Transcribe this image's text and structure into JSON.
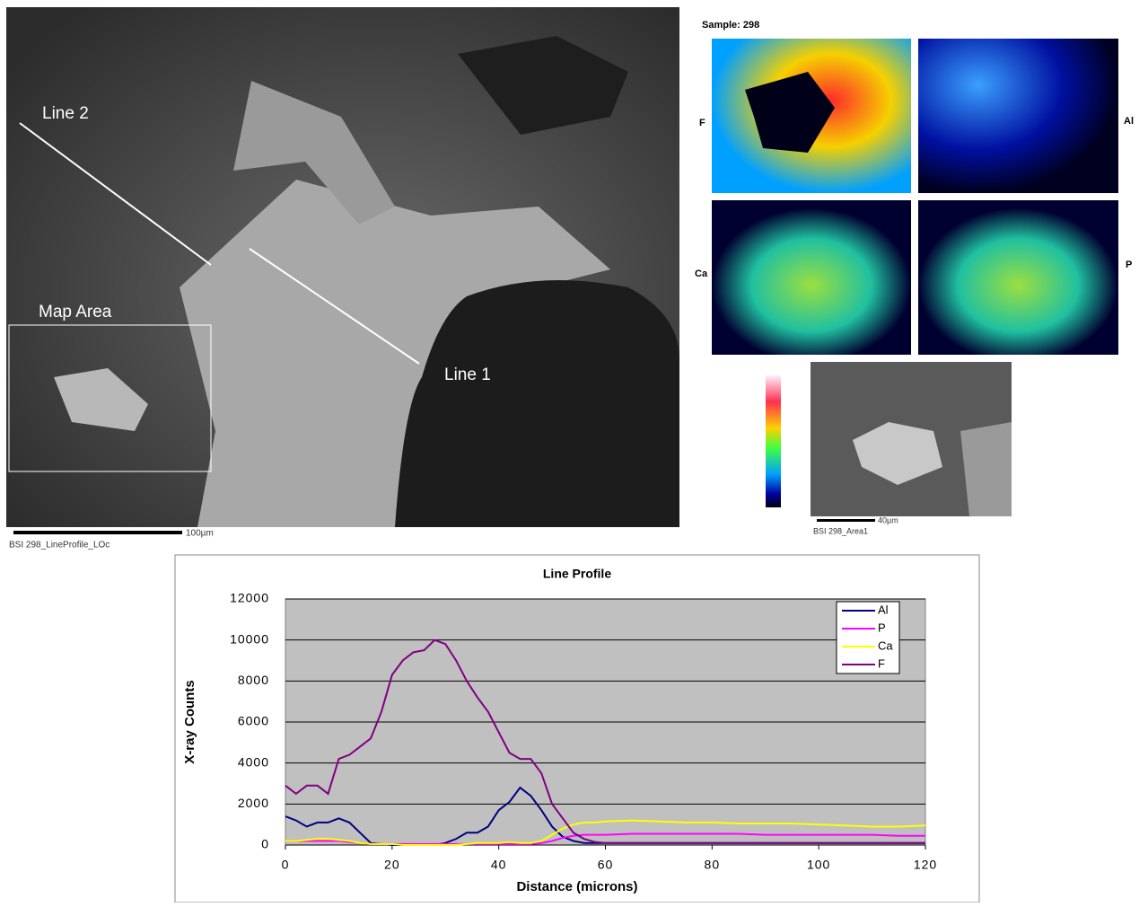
{
  "sem": {
    "line2": "Line 2",
    "line1": "Line 1",
    "map_area": "Map Area",
    "scale": "100µm",
    "caption": "BSI 298_LineProfile_LOc"
  },
  "maps": {
    "sample": "Sample: 298",
    "elements": [
      "F",
      "Al",
      "Ca",
      "P"
    ]
  },
  "area": {
    "scale": "40µm",
    "caption": "BSI 298_Area1"
  },
  "chart_data": {
    "type": "line",
    "title": "Line Profile",
    "x_label": "Distance (microns)",
    "y_label": "X-ray Counts",
    "x": [
      0,
      2,
      4,
      6,
      8,
      10,
      12,
      14,
      16,
      18,
      20,
      22,
      24,
      26,
      28,
      30,
      32,
      34,
      36,
      38,
      40,
      42,
      44,
      46,
      48,
      50,
      52,
      54,
      56,
      58,
      60,
      65,
      70,
      75,
      80,
      85,
      90,
      95,
      100,
      105,
      110,
      115,
      120
    ],
    "series": [
      {
        "name": "Al",
        "color": "#000080",
        "values": [
          1400,
          1200,
          900,
          1100,
          1100,
          1300,
          1100,
          600,
          100,
          50,
          0,
          0,
          0,
          0,
          0,
          100,
          300,
          600,
          600,
          900,
          1700,
          2100,
          2800,
          2400,
          1700,
          900,
          400,
          200,
          100,
          100,
          100,
          100,
          100,
          100,
          100,
          100,
          100,
          100,
          100,
          100,
          100,
          100,
          100
        ]
      },
      {
        "name": "P",
        "color": "#ff00ff",
        "values": [
          200,
          200,
          200,
          200,
          200,
          200,
          150,
          100,
          50,
          50,
          50,
          50,
          50,
          50,
          50,
          50,
          50,
          50,
          50,
          50,
          50,
          50,
          50,
          50,
          100,
          200,
          350,
          450,
          500,
          500,
          500,
          550,
          550,
          550,
          550,
          550,
          500,
          500,
          500,
          500,
          500,
          450,
          450
        ]
      },
      {
        "name": "Ca",
        "color": "#ffff00",
        "values": [
          200,
          200,
          250,
          300,
          300,
          250,
          200,
          100,
          50,
          50,
          50,
          0,
          0,
          0,
          0,
          0,
          0,
          50,
          100,
          100,
          100,
          150,
          100,
          100,
          200,
          500,
          800,
          1000,
          1100,
          1100,
          1150,
          1200,
          1150,
          1100,
          1100,
          1050,
          1050,
          1050,
          1000,
          950,
          900,
          900,
          950
        ]
      },
      {
        "name": "F",
        "color": "#800080",
        "values": [
          2900,
          2500,
          2900,
          2900,
          2500,
          4200,
          4400,
          4800,
          5200,
          6500,
          8300,
          9000,
          9400,
          9500,
          10000,
          9800,
          9000,
          8000,
          7200,
          6500,
          5500,
          4500,
          4200,
          4200,
          3500,
          2000,
          1300,
          600,
          300,
          150,
          100,
          100,
          100,
          100,
          100,
          100,
          100,
          100,
          100,
          100,
          100,
          100,
          100
        ]
      }
    ],
    "xlim": [
      0,
      120
    ],
    "xticks": [
      0,
      20,
      40,
      60,
      80,
      100,
      120
    ],
    "ylim": [
      0,
      12000
    ],
    "yticks": [
      0,
      2000,
      4000,
      6000,
      8000,
      10000,
      12000
    ],
    "grid": true,
    "legend": "upper right",
    "background": "#c0c0c0"
  }
}
